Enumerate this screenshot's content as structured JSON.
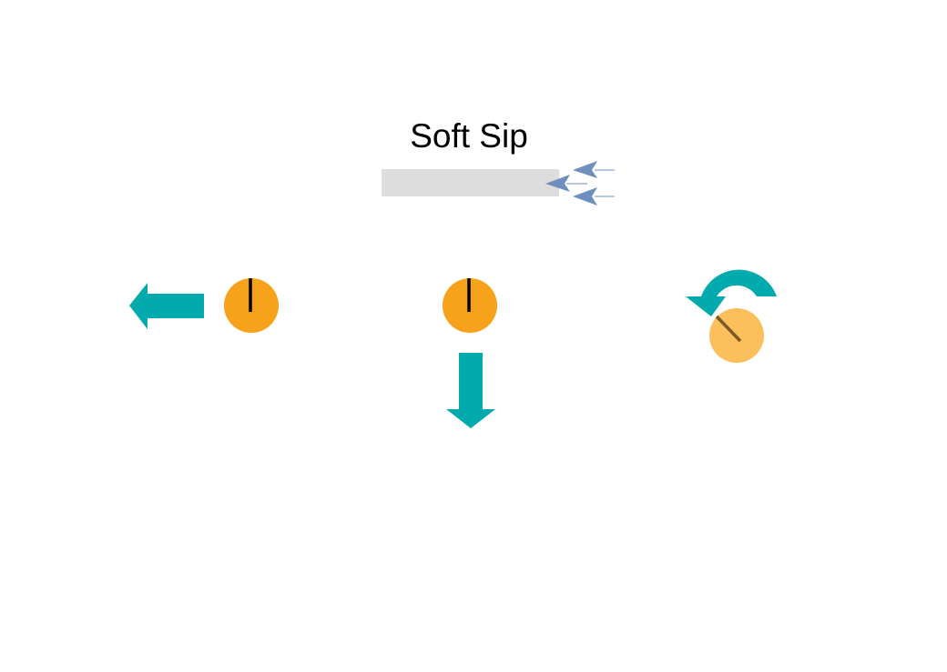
{
  "title": "Soft Sip",
  "colors": {
    "background": "#ffffff",
    "straw": "#dddddd",
    "airflow_arrows": "#6f8fbf",
    "motion_arrows": "#00aaad",
    "cursor_dot": "#f7a21b",
    "cursor_dot_faded": "#fbbf5c",
    "cursor_hand": "#000000",
    "cursor_hand_faded": "#7a5a25"
  },
  "icons": {
    "input": "straw",
    "airflow": "airflow-arrows-icon",
    "cursor": "dial-cursor-icon",
    "move_left": "arrow-left-icon",
    "move_down": "arrow-down-icon",
    "rotate": "rotate-arrow-icon"
  },
  "panels": [
    {
      "id": "left",
      "motion": "move-left"
    },
    {
      "id": "down",
      "motion": "move-down"
    },
    {
      "id": "rotate",
      "motion": "rotate-counterclockwise"
    }
  ]
}
